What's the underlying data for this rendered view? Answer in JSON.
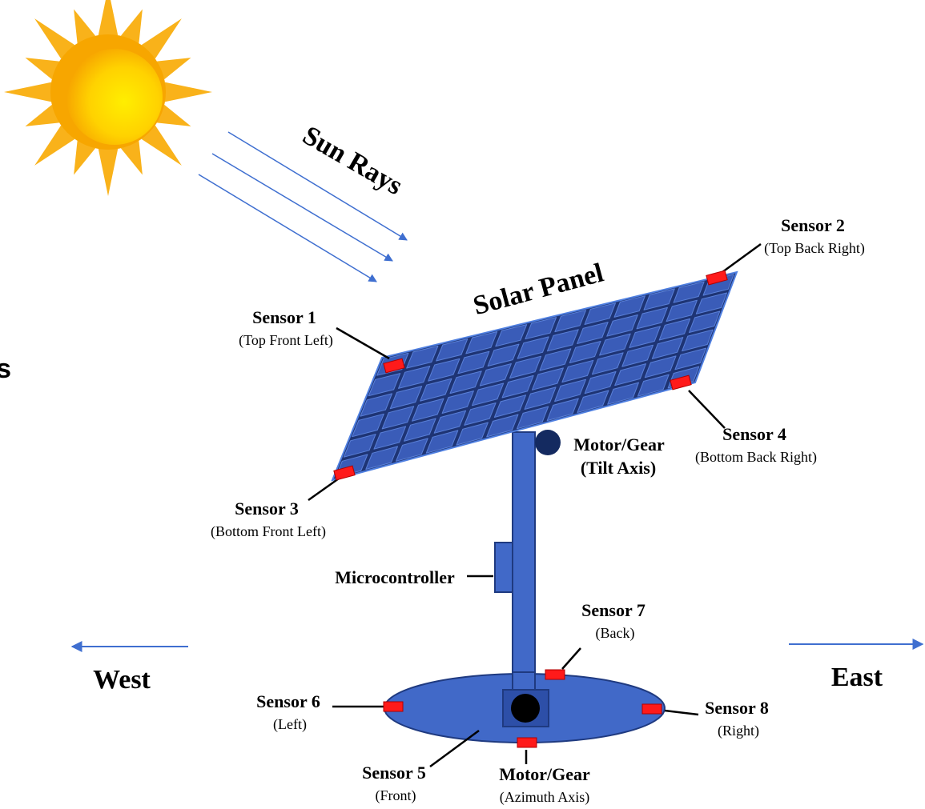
{
  "sun_rays_label": "Sun Rays",
  "panel_label": "Solar Panel",
  "sensors": [
    {
      "name": "Sensor 1",
      "location": "(Top Front Left)"
    },
    {
      "name": "Sensor 2",
      "location": "(Top Back Right)"
    },
    {
      "name": "Sensor 3",
      "location": "(Bottom Front Left)"
    },
    {
      "name": "Sensor 4",
      "location": "(Bottom Back Right)"
    },
    {
      "name": "Sensor 5",
      "location": "(Front)"
    },
    {
      "name": "Sensor 6",
      "location": "(Left)"
    },
    {
      "name": "Sensor 7",
      "location": "(Back)"
    },
    {
      "name": "Sensor 8",
      "location": "(Right)"
    }
  ],
  "motors": [
    {
      "name": "Motor/Gear",
      "axis": "(Tilt Axis)"
    },
    {
      "name": "Motor/Gear",
      "axis": "(Azimuth Axis)"
    }
  ],
  "microcontroller": "Microcontroller",
  "directions": {
    "west": "West",
    "east": "East"
  },
  "edge_fragment": "s"
}
